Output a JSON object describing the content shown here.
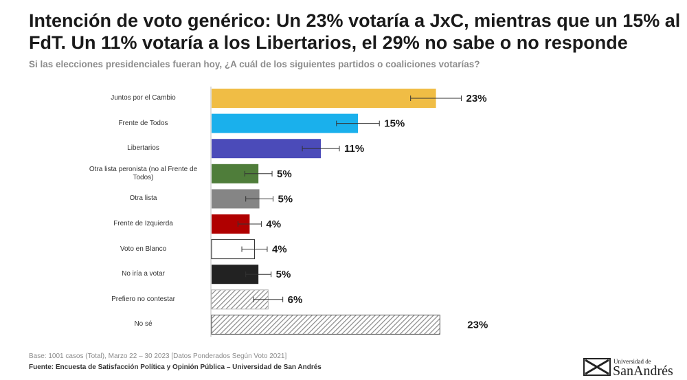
{
  "chart_data": {
    "type": "bar",
    "orientation": "horizontal",
    "title": "Intención de voto genérico: Un 23% votaría a JxC, mientras que un 15% al FdT. Un 11% votaría a los Libertarios, el 29% no sabe o no responde",
    "subtitle": "Si las elecciones presidenciales fueran hoy, ¿A cuál de los siguientes partidos o coaliciones votarías?",
    "categories": [
      "Juntos por el Cambio",
      "Frente de Todos",
      "Libertarios",
      "Otra lista peronista (no al Frente de Todos)",
      "Otra lista",
      "Frente de Izquierda",
      "Voto en Blanco",
      "No iría a votar",
      "Prefiero no contestar",
      "No sé"
    ],
    "values": [
      23,
      15,
      11.2,
      4.8,
      4.9,
      3.9,
      4.4,
      4.8,
      5.8,
      23.4
    ],
    "value_labels": [
      "23%",
      "15%",
      "11%",
      "5%",
      "5%",
      "4%",
      "4%",
      "5%",
      "6%",
      "23%"
    ],
    "errors": [
      2.6,
      2.2,
      1.9,
      1.4,
      1.4,
      1.2,
      1.3,
      1.3,
      1.5,
      null
    ],
    "colors": [
      "#f0bd45",
      "#1ab0ec",
      "#4b4bb9",
      "#4f7d3a",
      "#858585",
      "#b00000",
      "#ffffff",
      "#222222",
      "#b5b5b5",
      "#555555"
    ],
    "hatched": [
      false,
      false,
      false,
      false,
      false,
      false,
      false,
      false,
      true,
      true
    ],
    "notes": [
      "Base: 1001 casos (Total), Marzo 22 – 30 2023 [Datos Ponderados Según Voto 2021]",
      "Fuente: Encuesta de Satisfacción Política y Opinión Pública – Universidad de San Andrés"
    ],
    "logo": {
      "top": "Universidad de",
      "bottom": "SanAndrés"
    }
  }
}
